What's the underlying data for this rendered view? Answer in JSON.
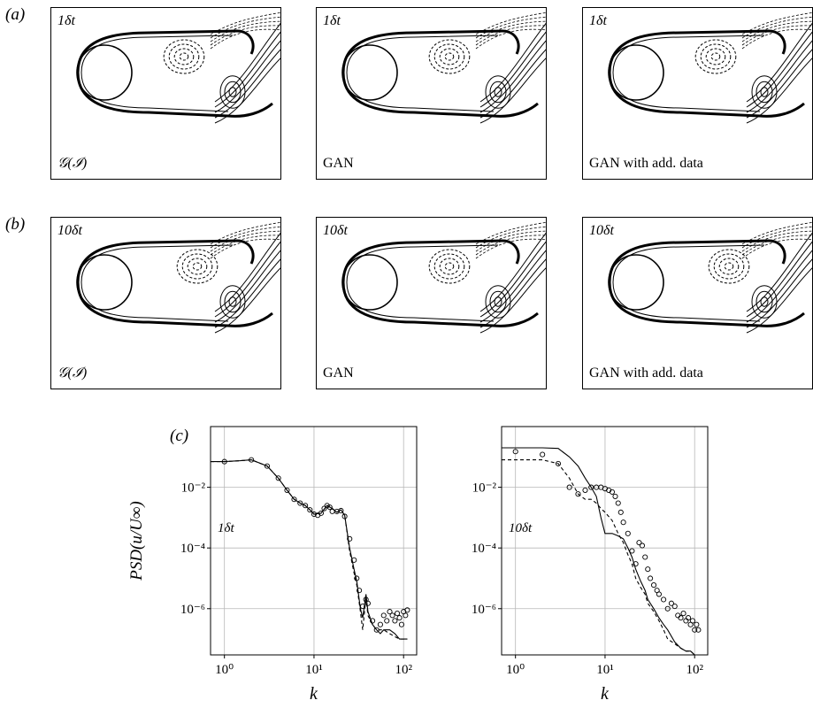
{
  "figure": {
    "row_labels": [
      "(a)",
      "(b)",
      "(c)"
    ],
    "rows": [
      {
        "label": "(a)",
        "panels": [
          {
            "time": "1δt",
            "name": "𝒢(ℐ)"
          },
          {
            "time": "1δt",
            "name": "GAN"
          },
          {
            "time": "1δt",
            "name": "GAN with add. data"
          }
        ]
      },
      {
        "label": "(b)",
        "panels": [
          {
            "time": "10δt",
            "name": "𝒢(ℐ)"
          },
          {
            "time": "10δt",
            "name": "GAN"
          },
          {
            "time": "10δt",
            "name": "GAN with add. data"
          }
        ]
      }
    ]
  },
  "chart_data": [
    {
      "type": "line",
      "annotation": "1δt",
      "xlabel": "k",
      "ylabel": "PSD(u/U∞)",
      "xscale": "log",
      "yscale": "log",
      "xlim": [
        0.7,
        140
      ],
      "ylim": [
        3e-08,
        1
      ],
      "xticks": [
        "10⁰",
        "10¹",
        "10²"
      ],
      "yticks": [
        "10⁻²",
        "10⁻⁴",
        "10⁻⁶"
      ],
      "grid": true,
      "series": [
        {
          "style": "solid",
          "x": [
            0.7,
            1,
            1.5,
            2,
            3,
            4,
            5,
            6,
            7,
            8,
            9,
            10,
            12,
            14,
            16,
            18,
            20,
            22,
            25,
            28,
            30,
            33,
            35,
            38,
            40,
            45,
            50,
            55,
            60,
            70,
            80,
            90,
            100,
            110
          ],
          "y": [
            0.07,
            0.07,
            0.075,
            0.08,
            0.05,
            0.02,
            0.008,
            0.004,
            0.003,
            0.0025,
            0.0018,
            0.0013,
            0.0014,
            0.0025,
            0.002,
            0.0015,
            0.0018,
            0.0012,
            0.0001,
            2e-05,
            8e-06,
            1e-06,
            5e-07,
            3e-06,
            8e-07,
            3e-07,
            2e-07,
            1.5e-07,
            2e-07,
            2e-07,
            1.5e-07,
            1e-07,
            1e-07,
            1e-07
          ]
        },
        {
          "style": "dashed",
          "x": [
            0.7,
            1,
            1.5,
            2,
            3,
            4,
            5,
            6,
            7,
            8,
            9,
            10,
            12,
            14,
            16,
            18,
            20,
            22,
            25,
            28,
            30,
            33,
            35,
            38,
            40,
            45,
            50,
            60,
            70,
            80,
            90,
            100,
            110
          ],
          "y": [
            0.07,
            0.07,
            0.075,
            0.08,
            0.05,
            0.02,
            0.008,
            0.004,
            0.003,
            0.0025,
            0.0018,
            0.0013,
            0.0014,
            0.0025,
            0.002,
            0.0015,
            0.0018,
            0.0012,
            8e-05,
            1.5e-05,
            6e-06,
            8e-07,
            2e-07,
            2.5e-06,
            6e-07,
            3e-07,
            2e-07,
            2e-07,
            1.5e-07,
            1.2e-07,
            1e-07,
            1e-07,
            1e-07
          ]
        },
        {
          "style": "circles",
          "x": [
            1,
            2,
            3,
            4,
            5,
            6,
            7,
            8,
            9,
            10,
            11,
            12,
            13,
            14,
            15,
            16,
            18,
            20,
            22,
            25,
            28,
            30,
            32,
            35,
            38,
            40,
            45,
            50,
            55,
            60,
            65,
            70,
            75,
            80,
            85,
            90,
            95,
            100,
            105,
            110
          ],
          "y": [
            0.07,
            0.08,
            0.05,
            0.02,
            0.008,
            0.004,
            0.003,
            0.0025,
            0.0018,
            0.0013,
            0.0012,
            0.0014,
            0.002,
            0.0025,
            0.0022,
            0.0016,
            0.0016,
            0.0017,
            0.0011,
            0.0002,
            4e-05,
            1e-05,
            4e-06,
            1.2e-06,
            2e-06,
            1.5e-06,
            4e-07,
            2e-07,
            3e-07,
            6e-07,
            4e-07,
            8e-07,
            6e-07,
            4e-07,
            7e-07,
            5e-07,
            3e-07,
            8e-07,
            6e-07,
            9e-07
          ]
        }
      ]
    },
    {
      "type": "line",
      "annotation": "10δt",
      "xlabel": "k",
      "ylabel": "",
      "xscale": "log",
      "yscale": "log",
      "xlim": [
        0.7,
        140
      ],
      "ylim": [
        3e-08,
        1
      ],
      "xticks": [
        "10⁰",
        "10¹",
        "10²"
      ],
      "yticks": [
        "10⁻²",
        "10⁻⁴",
        "10⁻⁶"
      ],
      "grid": true,
      "series": [
        {
          "style": "solid",
          "x": [
            0.7,
            1,
            2,
            3,
            4,
            5,
            6,
            7,
            8,
            9,
            10,
            11,
            12,
            14,
            16,
            18,
            20,
            22,
            25,
            28,
            30,
            35,
            40,
            45,
            50,
            60,
            70,
            80,
            90,
            100,
            110
          ],
          "y": [
            0.2,
            0.2,
            0.2,
            0.19,
            0.1,
            0.05,
            0.02,
            0.01,
            0.005,
            0.001,
            0.0003,
            0.0003,
            0.0003,
            0.00025,
            0.0002,
            0.0001,
            5e-05,
            2e-05,
            8e-06,
            4e-06,
            2e-06,
            1e-06,
            5e-07,
            3e-07,
            2e-07,
            8e-08,
            5e-08,
            4e-08,
            4e-08,
            3e-08,
            3e-08
          ]
        },
        {
          "style": "dashed",
          "x": [
            0.7,
            1,
            2,
            3,
            4,
            5,
            6,
            7,
            8,
            9,
            10,
            12,
            14,
            16,
            18,
            20,
            22,
            25,
            28,
            30,
            35,
            40,
            45,
            50,
            60,
            70,
            80,
            90,
            100,
            110
          ],
          "y": [
            0.08,
            0.08,
            0.08,
            0.06,
            0.02,
            0.006,
            0.004,
            0.004,
            0.003,
            0.002,
            0.0015,
            0.0008,
            0.0003,
            0.00015,
            6e-05,
            3e-05,
            1e-05,
            5e-06,
            3e-06,
            1.5e-06,
            8e-07,
            4e-07,
            2e-07,
            1e-07,
            7e-08,
            5e-08,
            4e-08,
            4e-08,
            3e-08,
            3e-08
          ]
        },
        {
          "style": "circles",
          "x": [
            1,
            2,
            3,
            4,
            5,
            6,
            7,
            8,
            9,
            10,
            11,
            12,
            13,
            14,
            15,
            16,
            18,
            20,
            22,
            24,
            26,
            28,
            30,
            32,
            35,
            38,
            40,
            45,
            50,
            55,
            60,
            65,
            70,
            75,
            80,
            85,
            90,
            95,
            100,
            105,
            110
          ],
          "y": [
            0.15,
            0.12,
            0.06,
            0.01,
            0.006,
            0.008,
            0.01,
            0.01,
            0.01,
            0.009,
            0.008,
            0.007,
            0.005,
            0.003,
            0.0015,
            0.0007,
            0.0003,
            8e-05,
            3e-05,
            0.00015,
            0.00012,
            5e-05,
            2e-05,
            1e-05,
            6e-06,
            4e-06,
            3e-06,
            2e-06,
            1e-06,
            1.5e-06,
            1.2e-06,
            6e-07,
            5e-07,
            7e-07,
            4e-07,
            5e-07,
            3e-07,
            4e-07,
            2e-07,
            3e-07,
            2e-07
          ]
        }
      ]
    }
  ]
}
